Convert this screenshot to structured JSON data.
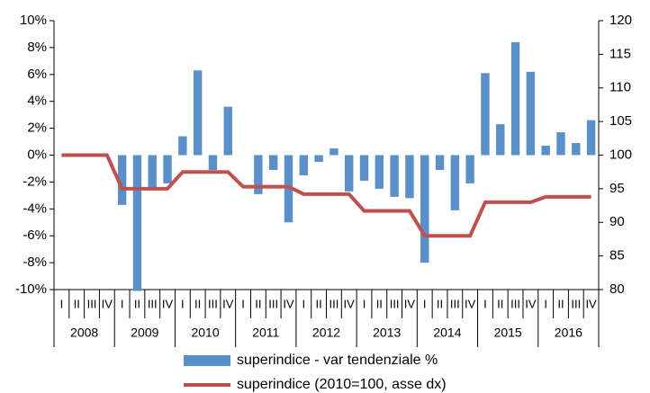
{
  "chart_data": {
    "type": "bar-line",
    "categories": [
      "I",
      "II",
      "III",
      "IV",
      "I",
      "II",
      "III",
      "IV",
      "I",
      "II",
      "III",
      "IV",
      "I",
      "II",
      "III",
      "IV",
      "I",
      "II",
      "III",
      "IV",
      "I",
      "II",
      "III",
      "IV",
      "I",
      "II",
      "III",
      "IV",
      "I",
      "II",
      "III",
      "IV",
      "I",
      "II",
      "III",
      "IV"
    ],
    "years": [
      "2008",
      "2009",
      "2010",
      "2011",
      "2012",
      "2013",
      "2014",
      "2015",
      "2016"
    ],
    "series": [
      {
        "name": "superindice - var tendenziale %",
        "type": "bar",
        "axis": "y",
        "color": "#5b8fc9",
        "values": [
          null,
          null,
          null,
          null,
          -3.7,
          -10.1,
          -2.6,
          -2.1,
          1.4,
          6.3,
          -1.1,
          3.6,
          0,
          -2.9,
          -1.1,
          -5.0,
          -1.5,
          -0.5,
          0.5,
          -2.7,
          -1.9,
          -2.5,
          -3.1,
          -3.2,
          -8.0,
          -1.1,
          -4.1,
          -2.1,
          6.1,
          2.3,
          8.4,
          6.2,
          0.7,
          1.7,
          0.9,
          2.6
        ]
      },
      {
        "name": "superindice (2010=100, asse dx)",
        "type": "line",
        "axis": "y2",
        "color": "#c0504d",
        "values": [
          100,
          100,
          100,
          100,
          95,
          95,
          95,
          95,
          97.5,
          97.5,
          97.5,
          97.5,
          95.3,
          95.3,
          95.3,
          95.3,
          94.2,
          94.2,
          94.2,
          94.2,
          91.7,
          91.7,
          91.7,
          91.7,
          88,
          88,
          88,
          88,
          93,
          93,
          93,
          93,
          93.8,
          93.8,
          93.8,
          93.8
        ]
      }
    ],
    "ylim": [
      -10,
      10
    ],
    "yticks": [
      {
        "value": -10,
        "label": "-10%"
      },
      {
        "value": -8,
        "label": "-8%"
      },
      {
        "value": -6,
        "label": "-6%"
      },
      {
        "value": -4,
        "label": "-4%"
      },
      {
        "value": -2,
        "label": "-2%"
      },
      {
        "value": 0,
        "label": "0%"
      },
      {
        "value": 2,
        "label": "2%"
      },
      {
        "value": 4,
        "label": "4%"
      },
      {
        "value": 6,
        "label": "6%"
      },
      {
        "value": 8,
        "label": "8%"
      },
      {
        "value": 10,
        "label": "10%"
      }
    ],
    "y2lim": [
      80,
      120
    ],
    "y2ticks": [
      80,
      85,
      90,
      95,
      100,
      105,
      110,
      115,
      120
    ],
    "grid": false
  }
}
